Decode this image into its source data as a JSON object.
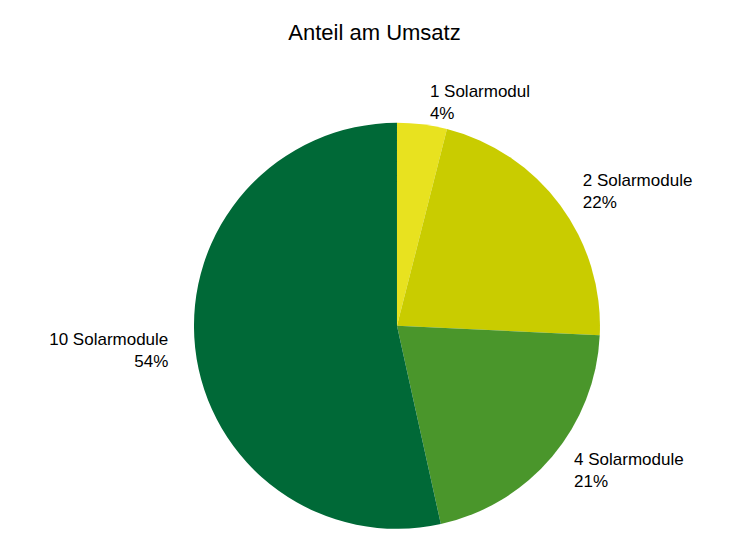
{
  "chart_data": {
    "type": "pie",
    "title": "Anteil am Umsatz",
    "categories": [
      "1 Solarmodul",
      "2 Solarmodule",
      "4 Solarmodule",
      "10 Solarmodule"
    ],
    "values": [
      4,
      22,
      21,
      54
    ],
    "value_labels": [
      "4%",
      "22%",
      "21%",
      "54%"
    ],
    "colors": [
      "#e8e21f",
      "#c9cc00",
      "#4a962b",
      "#006937"
    ],
    "data_labels": true
  }
}
